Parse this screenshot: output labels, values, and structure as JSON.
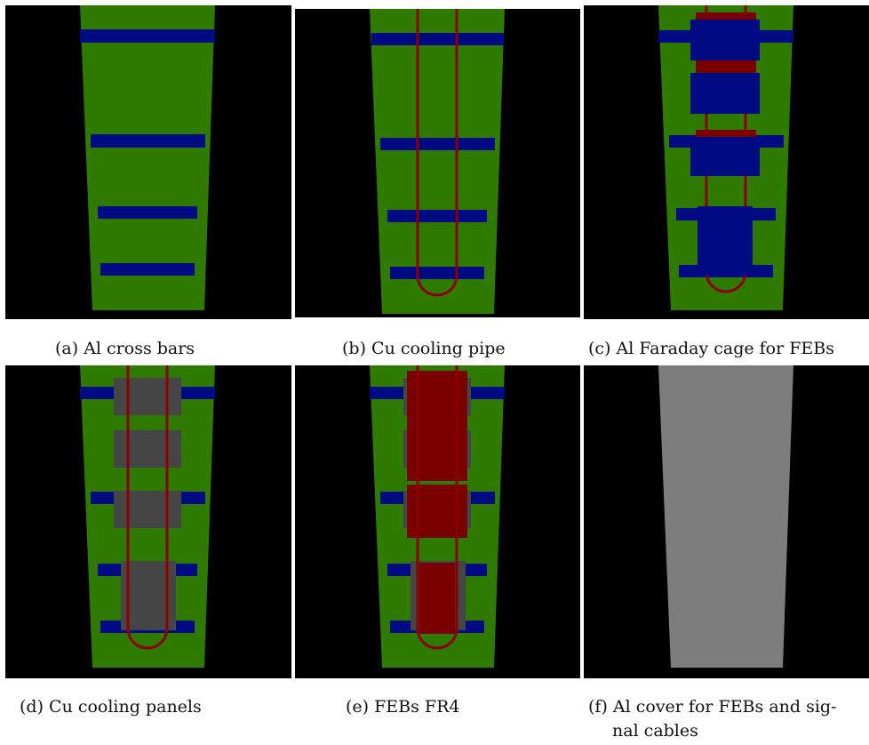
{
  "figure": {
    "captions": {
      "a": "(a) Al cross bars",
      "b": "(b) Cu cooling pipe",
      "c": "(c) Al Faraday cage for FEBs",
      "d": "(d) Cu cooling panels",
      "e": "(e) FEBs FR4",
      "f_line1": "(f) Al cover for FEBs and sig-",
      "f_line2": "nal cables"
    },
    "colors": {
      "background": "#000000",
      "plate": "#2f7a00",
      "cross_bar": "#000a82",
      "cu_pipe": "#8a0000",
      "faraday_cage": "#000a82",
      "cooling_panel": "#454545",
      "feb_fr4": "#7a0000",
      "cover": "#7d7d7d"
    }
  }
}
